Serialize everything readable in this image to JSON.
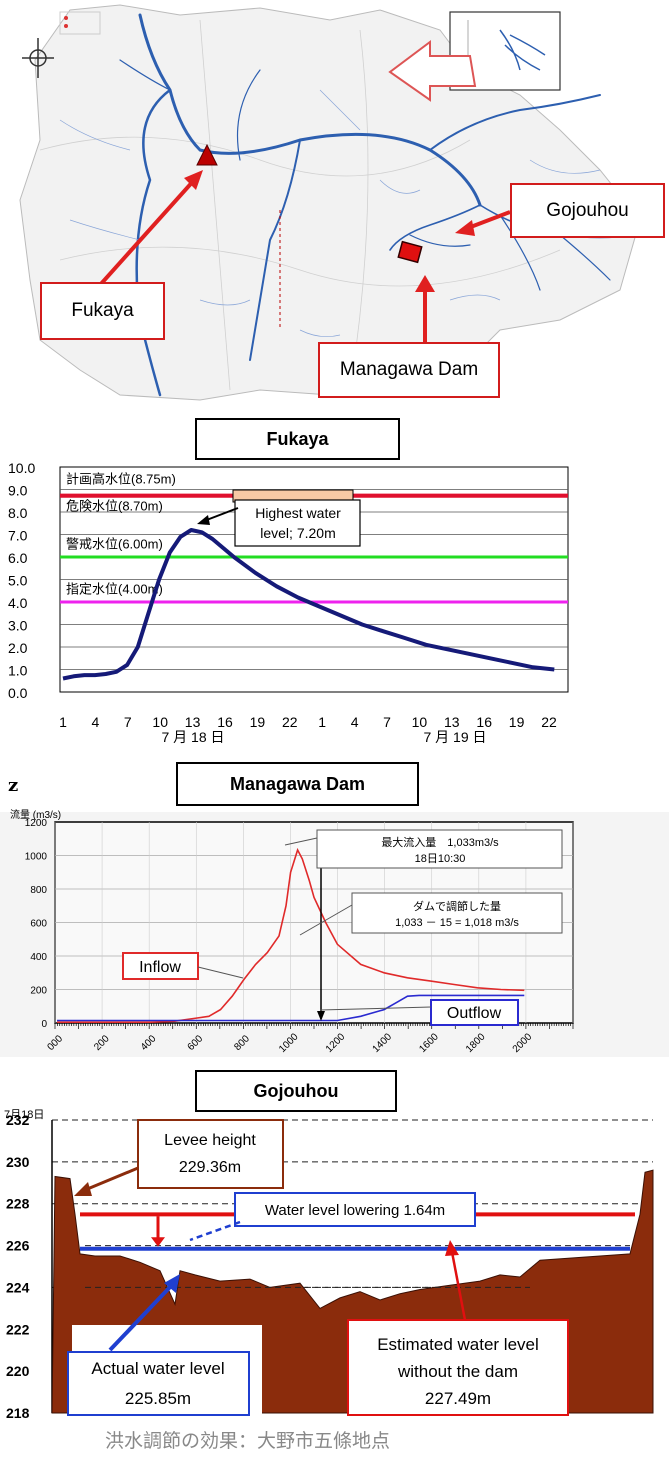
{
  "map": {
    "callouts": {
      "gojouhou": "Gojouhou",
      "fukaya": "Fukaya",
      "managawa": "Managawa Dam"
    },
    "colors": {
      "river": "#2d5fb0",
      "arrow": "#e02020",
      "frame": "#d21c1c"
    }
  },
  "fukaya_chart": {
    "title": "Fukaya",
    "peak_note": "Highest water level; 7.20m",
    "peak_note_line1": "Highest water",
    "peak_note_line2": "level; 7.20m",
    "level_labels": [
      "計画高水位(8.75m)",
      "危険水位(8.70m)",
      "警戒水位(6.00m)",
      "指定水位(4.00m)"
    ],
    "date_labels": [
      "7 月 18 日",
      "7 月 19 日"
    ]
  },
  "z_label": "z",
  "dam_chart": {
    "title": "Managawa Dam",
    "ylabel": "流量 (m3/s)",
    "box1_line1": "最大流入量　1,033m3/s",
    "box1_line2": "18日10:30",
    "box2_line1": "ダムで調節した量",
    "box2_line2": "1,033 － 15 = 1,018 m3/s",
    "inflow_label": "Inflow",
    "outflow_label": "Outflow"
  },
  "gojo_chart": {
    "title": "Gojouhou",
    "date": "7月18日",
    "levee_line1": "Levee height",
    "levee_line2": "229.36m",
    "lowering": "Water level lowering 1.64m",
    "actual_line1": "Actual water level",
    "actual_line2": "225.85m",
    "est_line1": "Estimated water level",
    "est_line2": "without the dam",
    "est_line3": "227.49m",
    "caption": "洪水調節の効果：大野市五條地点",
    "colors": {
      "terrain": "#8b2c0c",
      "estimated": "#e01010",
      "actual": "#1f3fd0"
    }
  },
  "chart_data": [
    {
      "type": "line",
      "title": "Fukaya",
      "ylim": [
        0,
        10
      ],
      "yticks": [
        "10.0",
        "9.0",
        "8.0",
        "7.0",
        "6.0",
        "5.0",
        "4.0",
        "3.0",
        "2.0",
        "1.0",
        "0.0"
      ],
      "xticks": [
        "1",
        "4",
        "7",
        "10",
        "13",
        "16",
        "19",
        "22",
        "1",
        "4",
        "7",
        "10",
        "13",
        "16",
        "19",
        "22"
      ],
      "reference_lines": [
        {
          "label": "計画高水位(8.75m)",
          "value": 8.75,
          "color": "#e0102e"
        },
        {
          "label": "危険水位(8.70m)",
          "value": 8.7,
          "color": "#e0102e"
        },
        {
          "label": "警戒水位(6.00m)",
          "value": 6.0,
          "color": "#22dd22"
        },
        {
          "label": "指定水位(4.00m)",
          "value": 4.0,
          "color": "#ee22ee"
        }
      ],
      "series": [
        {
          "values_hour": [
            0,
            1,
            2,
            3,
            4,
            5,
            6,
            7,
            8,
            9,
            10,
            11,
            12,
            13,
            14,
            15,
            16,
            18,
            20,
            22,
            24,
            26,
            28,
            30,
            32,
            34,
            36,
            38,
            40,
            42,
            44,
            46
          ],
          "values": [
            0.6,
            0.7,
            0.75,
            0.75,
            0.8,
            0.9,
            1.2,
            2.0,
            3.5,
            5.0,
            6.2,
            6.9,
            7.2,
            7.1,
            6.8,
            6.4,
            6.0,
            5.3,
            4.7,
            4.2,
            3.8,
            3.4,
            3.0,
            2.7,
            2.4,
            2.1,
            1.9,
            1.7,
            1.5,
            1.3,
            1.1,
            1.0
          ]
        }
      ]
    },
    {
      "type": "line",
      "title": "Managawa Dam",
      "ylabel": "流量 (m3/s)",
      "ylim": [
        0,
        1200
      ],
      "yticks": [
        "0",
        "200",
        "400",
        "600",
        "800",
        "1000",
        "1200"
      ],
      "xticks": [
        "000",
        "200",
        "400",
        "600",
        "800",
        "1000",
        "1200",
        "1400",
        "1600",
        "1800",
        "2000"
      ],
      "series": [
        {
          "name": "Inflow",
          "x": [
            0,
            200,
            400,
            500,
            600,
            650,
            700,
            750,
            800,
            850,
            900,
            950,
            980,
            1000,
            1030,
            1050,
            1080,
            1100,
            1150,
            1200,
            1300,
            1400,
            1500,
            1600,
            1700,
            1800,
            1900,
            2000
          ],
          "values": [
            5,
            5,
            5,
            10,
            30,
            40,
            80,
            160,
            260,
            350,
            420,
            520,
            700,
            900,
            1033,
            980,
            850,
            750,
            600,
            470,
            350,
            300,
            270,
            250,
            230,
            210,
            200,
            195
          ]
        },
        {
          "name": "Outflow",
          "x": [
            0,
            1200,
            1300,
            1400,
            1450,
            1500,
            1550,
            2000
          ],
          "values": [
            15,
            15,
            40,
            80,
            120,
            160,
            165,
            165
          ]
        }
      ]
    },
    {
      "type": "area",
      "title": "Gojouhou",
      "ylim": [
        218,
        232
      ],
      "yticks": [
        "232",
        "230",
        "228",
        "226",
        "224",
        "222",
        "220",
        "218"
      ],
      "reference_lines": [
        {
          "label": "Levee height 229.36m",
          "value": 229.36
        },
        {
          "label": "Estimated water level without the dam 227.49m",
          "value": 227.49,
          "color": "#e01010"
        },
        {
          "label": "Actual water level 225.85m",
          "value": 225.85,
          "color": "#1f3fd0"
        }
      ]
    }
  ]
}
